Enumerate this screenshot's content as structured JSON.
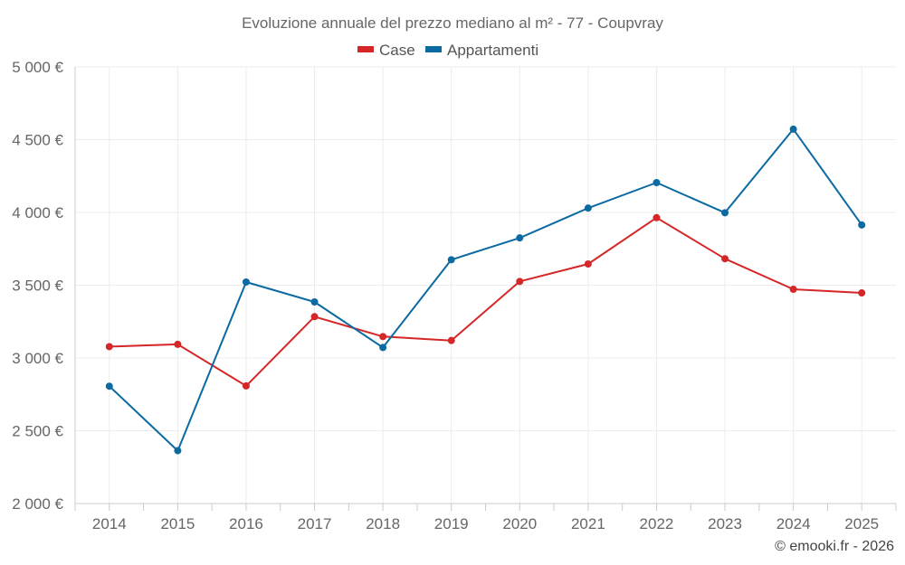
{
  "colors": {
    "case": "#d62728",
    "appartamenti": "#0b6aa2",
    "grid": "#ececec",
    "axis": "#cccccc",
    "text": "#666666"
  },
  "chart_data": {
    "type": "line",
    "title": "Evoluzione annuale del prezzo mediano al m² - 77 - Coupvray",
    "xlabel": "",
    "ylabel": "",
    "x": [
      "2014",
      "2015",
      "2016",
      "2017",
      "2018",
      "2019",
      "2020",
      "2021",
      "2022",
      "2023",
      "2024",
      "2025"
    ],
    "ylim": [
      2000,
      5000
    ],
    "yticks": [
      2000,
      2500,
      3000,
      3500,
      4000,
      4500,
      5000
    ],
    "ytick_labels": [
      "2 000 €",
      "2 500 €",
      "3 000 €",
      "3 500 €",
      "4 000 €",
      "4 500 €",
      "5 000 €"
    ],
    "grid": true,
    "legend_position": "top-center",
    "series": [
      {
        "name": "Case",
        "color_key": "case",
        "values": [
          3078,
          3094,
          2808,
          3284,
          3147,
          3120,
          3526,
          3646,
          3964,
          3682,
          3472,
          3447
        ]
      },
      {
        "name": "Appartamenti",
        "color_key": "appartamenti",
        "values": [
          2806,
          2363,
          3522,
          3385,
          3072,
          3675,
          3825,
          4030,
          4205,
          3998,
          4572,
          3914
        ]
      }
    ]
  },
  "credit": "© emooki.fr - 2026"
}
